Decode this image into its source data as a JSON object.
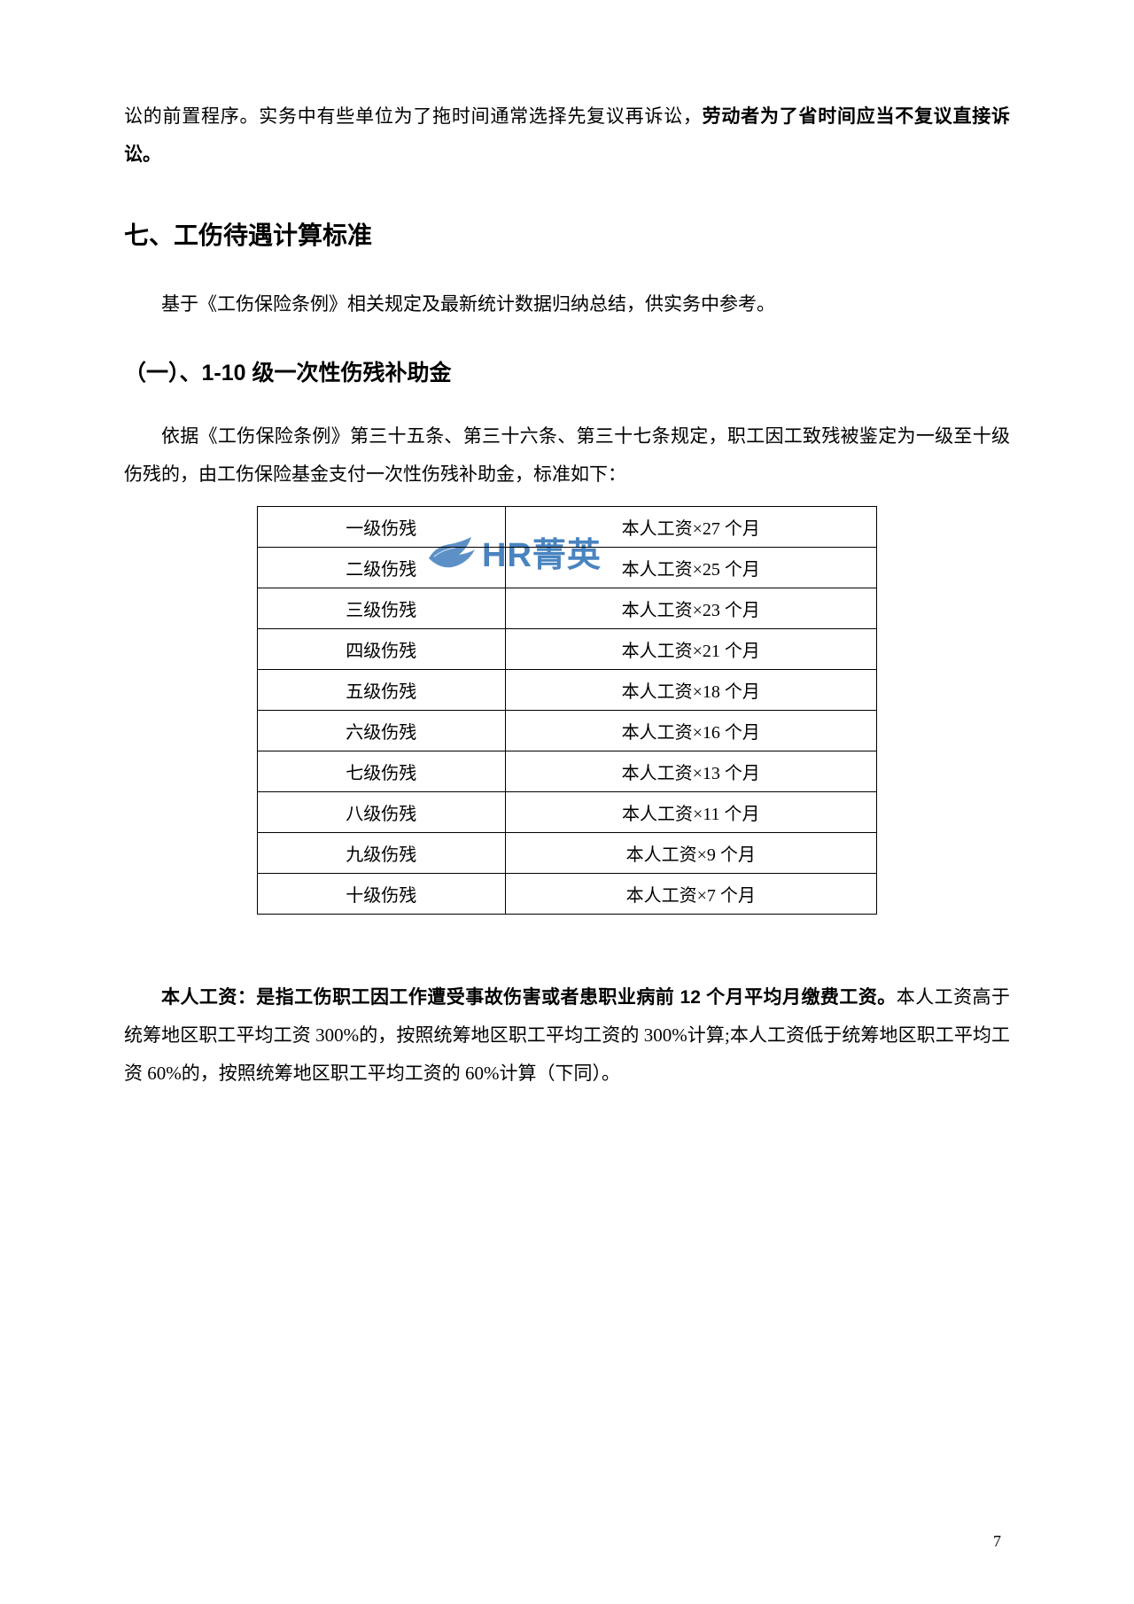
{
  "intro_para": {
    "pre": "讼的前置程序。实务中有些单位为了拖时间通常选择先复议再诉讼，",
    "bold": "劳动者为了省时间应当不复议直接诉讼。"
  },
  "heading7": "七、工伤待遇计算标准",
  "para7_intro": "基于《工伤保险条例》相关规定及最新统计数据归纳总结，供实务中参考。",
  "heading7_1": "（一）、1-10 级一次性伤残补助金",
  "para7_1_intro": "依据《工伤保险条例》第三十五条、第三十六条、第三十七条规定，职工因工致残被鉴定为一级至十级伤残的，由工伤保险基金支付一次性伤残补助金，标准如下：",
  "table": {
    "rows": [
      {
        "level": "一级伤残",
        "amount": "本人工资×27 个月"
      },
      {
        "level": "二级伤残",
        "amount": "本人工资×25 个月"
      },
      {
        "level": "三级伤残",
        "amount": "本人工资×23 个月"
      },
      {
        "level": "四级伤残",
        "amount": "本人工资×21 个月"
      },
      {
        "level": "五级伤残",
        "amount": "本人工资×18 个月"
      },
      {
        "level": "六级伤残",
        "amount": "本人工资×16 个月"
      },
      {
        "level": "七级伤残",
        "amount": "本人工资×13 个月"
      },
      {
        "level": "八级伤残",
        "amount": "本人工资×11 个月"
      },
      {
        "level": "九级伤残",
        "amount": "本人工资×9 个月"
      },
      {
        "level": "十级伤残",
        "amount": "本人工资×7 个月"
      }
    ]
  },
  "note": {
    "bold": "本人工资：是指工伤职工因工作遭受事故伤害或者患职业病前 12 个月平均月缴费工资。",
    "rest": "本人工资高于统筹地区职工平均工资 300%的，按照统筹地区职工平均工资的 300%计算;本人工资低于统筹地区职工平均工资 60%的，按照统筹地区职工平均工资的 60%计算（下同）。"
  },
  "watermark_text": "HR菁英",
  "page_number": "7",
  "colors": {
    "text": "#000000",
    "watermark": "#2a6fb5",
    "background": "#ffffff"
  }
}
